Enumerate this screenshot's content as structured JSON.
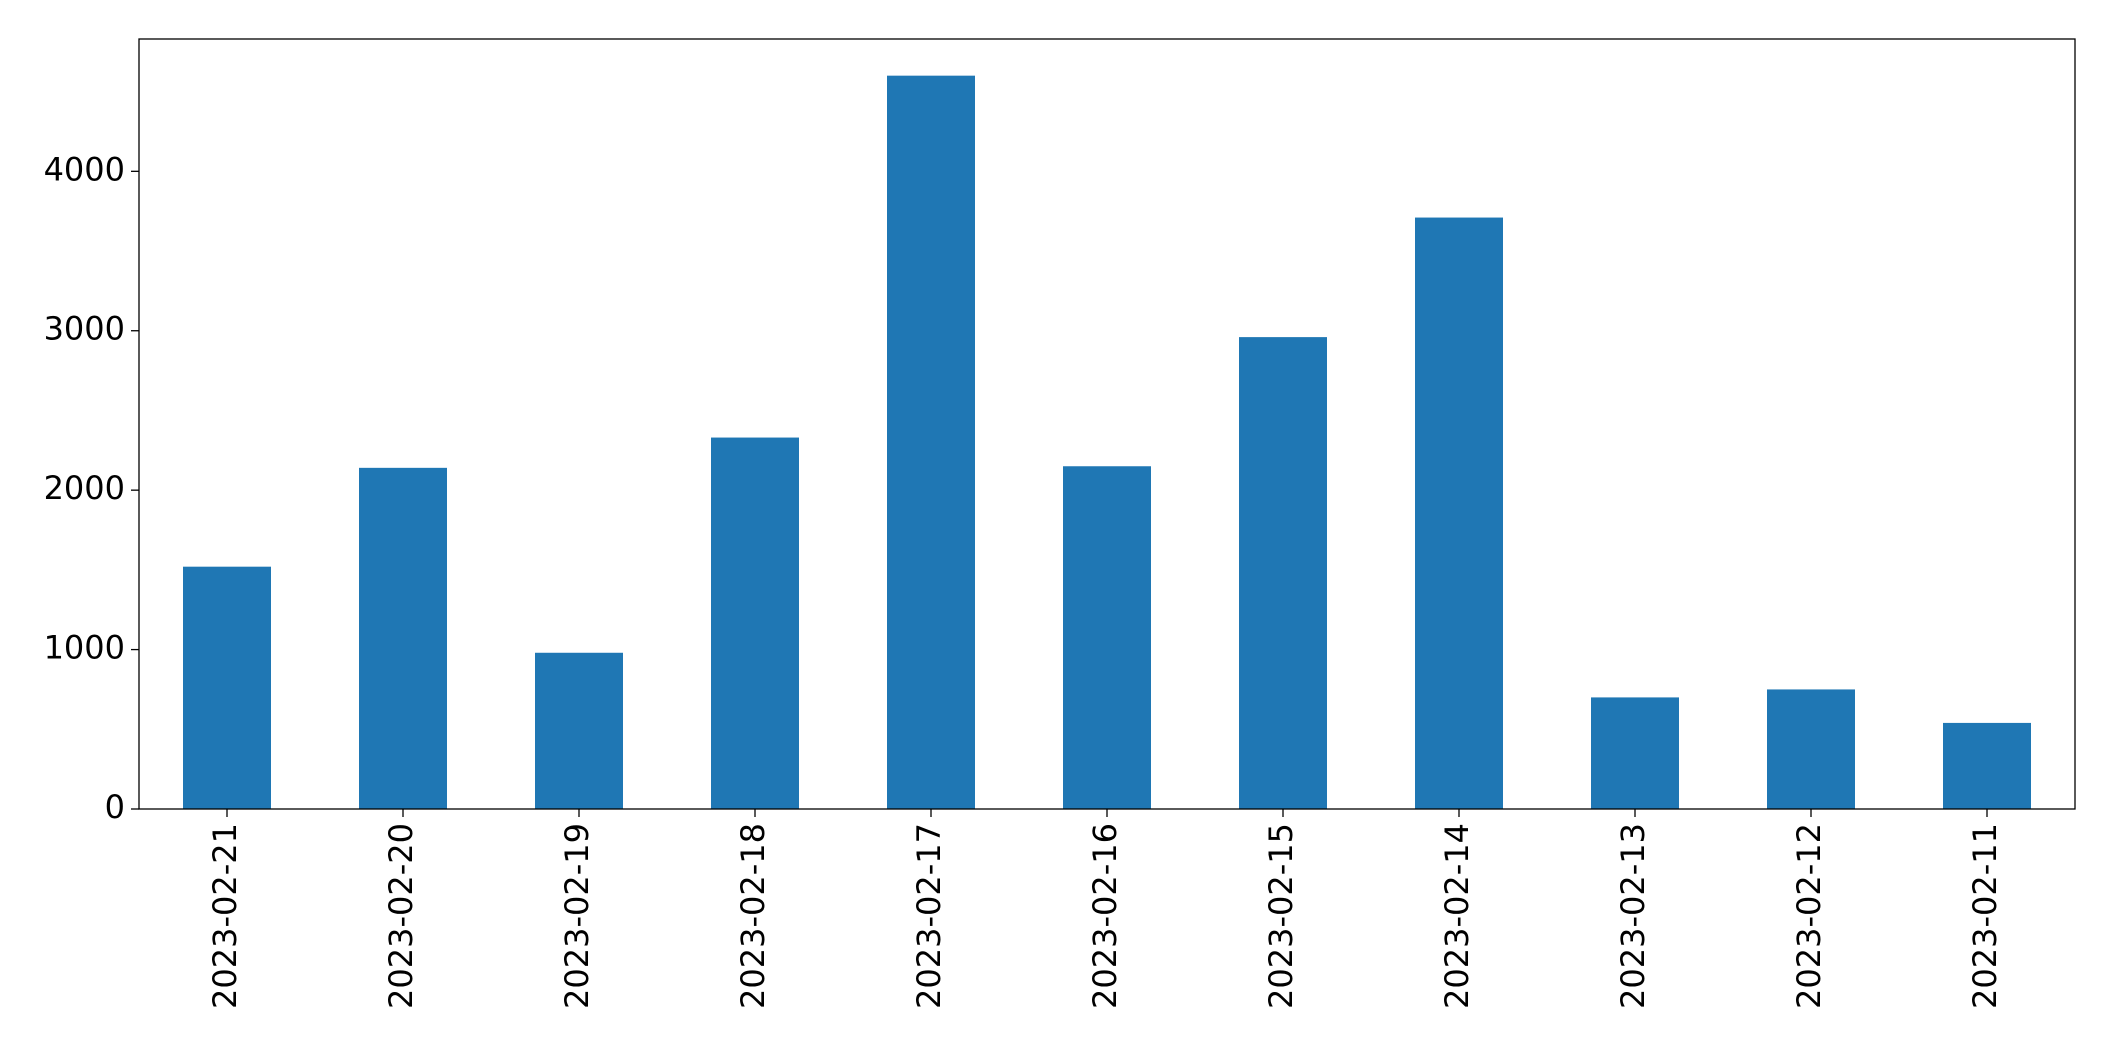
{
  "chart_data": {
    "type": "bar",
    "categories": [
      "2023-02-21",
      "2023-02-20",
      "2023-02-19",
      "2023-02-18",
      "2023-02-17",
      "2023-02-16",
      "2023-02-15",
      "2023-02-14",
      "2023-02-13",
      "2023-02-12",
      "2023-02-11"
    ],
    "values": [
      1520,
      2140,
      980,
      2330,
      4600,
      2150,
      2960,
      3710,
      700,
      750,
      540
    ],
    "color": "#1f77b4",
    "ylim": [
      0,
      4830
    ],
    "yticks": [
      0,
      1000,
      2000,
      3000,
      4000
    ],
    "grid": false
  }
}
